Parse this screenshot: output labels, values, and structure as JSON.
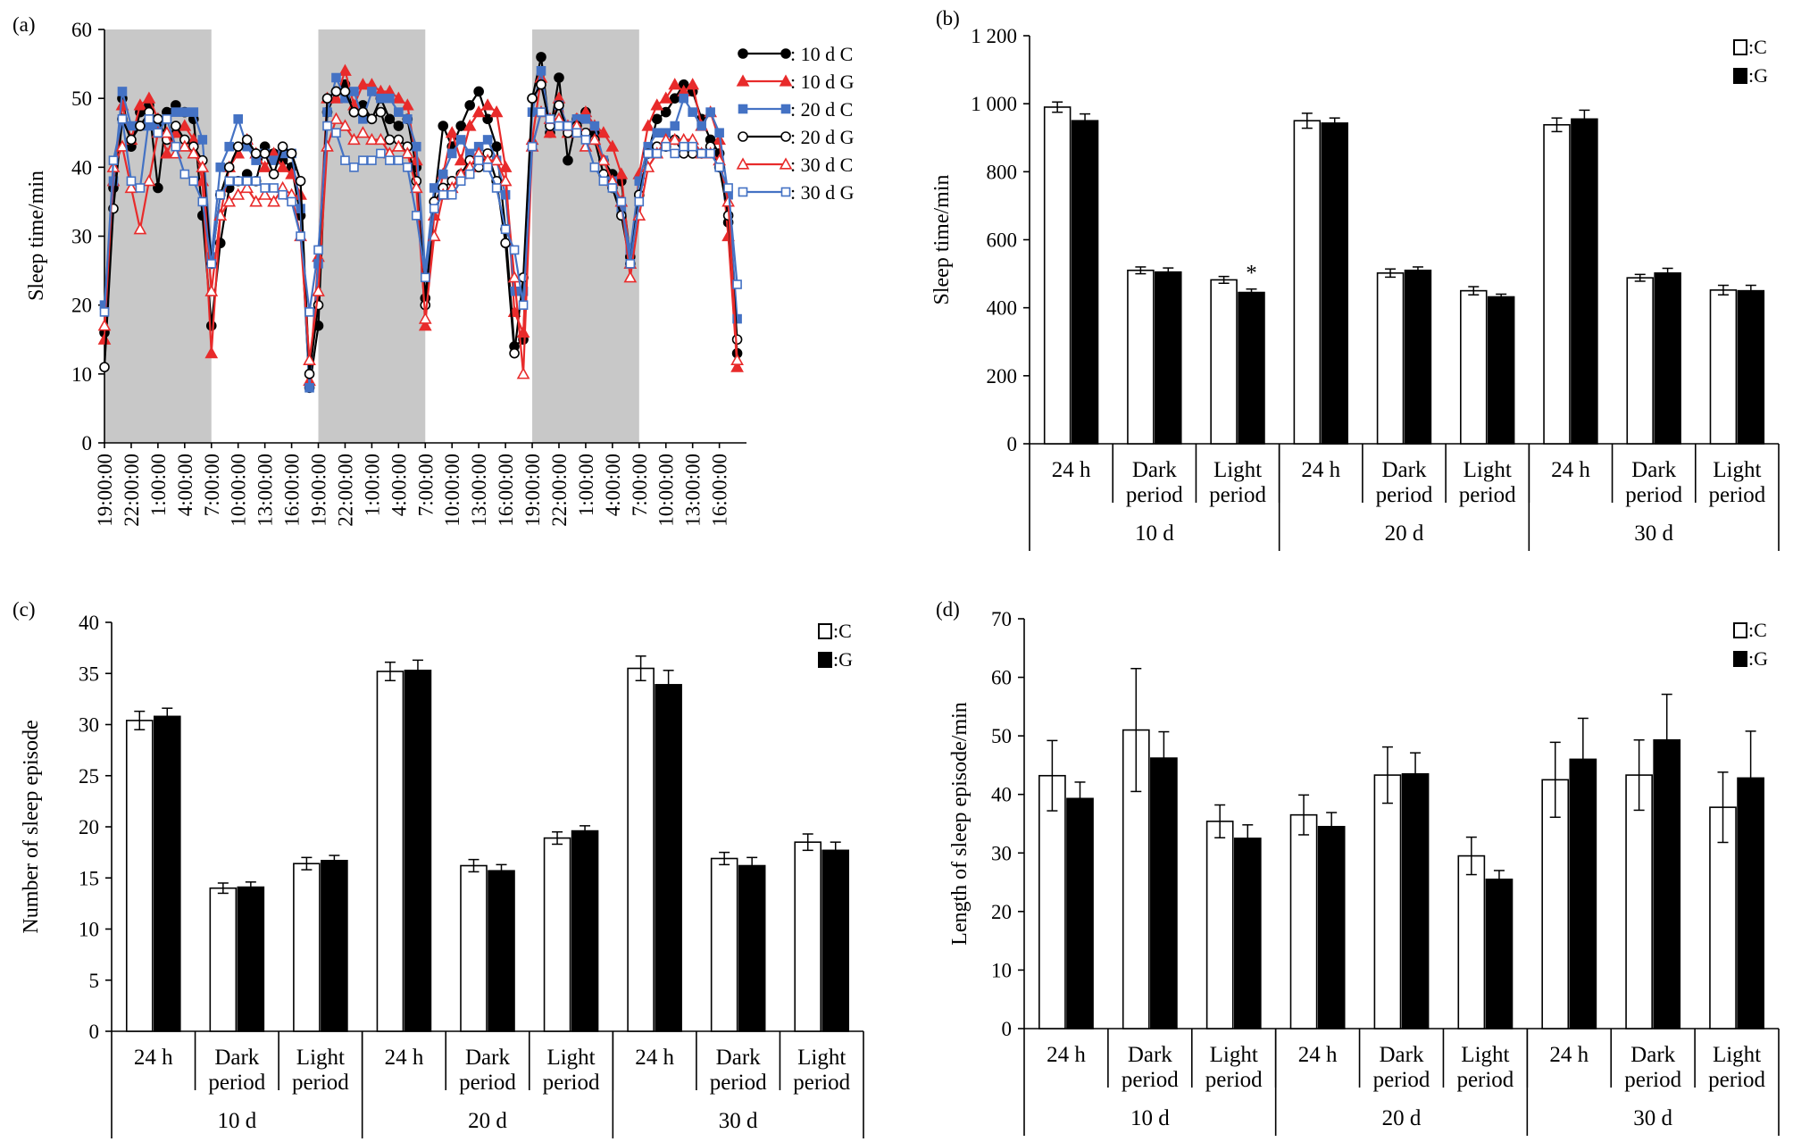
{
  "chart_data": [
    {
      "panel": "(a)",
      "type": "line",
      "ylabel": "Sleep time/min",
      "ylim": [
        0,
        60
      ],
      "yticks": [
        0,
        10,
        20,
        30,
        40,
        50,
        60
      ],
      "x_tick_labels": [
        "19:00:00",
        "22:00:00",
        "1:00:00",
        "4:00:00",
        "7:00:00",
        "10:00:00",
        "13:00:00",
        "16:00:00",
        "19:00:00",
        "22:00:00",
        "1:00:00",
        "4:00:00",
        "7:00:00",
        "10:00:00",
        "13:00:00",
        "16:00:00",
        "19:00:00",
        "22:00:00",
        "1:00:00",
        "4:00:00",
        "7:00:00",
        "10:00:00",
        "13:00:00",
        "16:00:00"
      ],
      "x_hours": [
        0,
        1,
        2,
        3,
        4,
        5,
        6,
        7,
        8,
        9,
        10,
        11,
        12,
        13,
        14,
        15,
        16,
        17,
        18,
        19,
        20,
        21,
        22,
        23,
        24,
        25,
        26,
        27,
        28,
        29,
        30,
        31,
        32,
        33,
        34,
        35,
        36,
        37,
        38,
        39,
        40,
        41,
        42,
        43,
        44,
        45,
        46,
        47,
        48,
        49,
        50,
        51,
        52,
        53,
        54,
        55,
        56,
        57,
        58,
        59,
        60,
        61,
        62,
        63,
        64,
        65,
        66,
        67,
        68,
        69,
        70,
        71
      ],
      "dark_periods": [
        [
          0,
          12
        ],
        [
          24,
          36
        ],
        [
          48,
          60
        ]
      ],
      "legend_position": "top-right",
      "series": [
        {
          "name": ": 10 d C",
          "color": "#000000",
          "marker": "circle",
          "filled": true,
          "values": [
            16,
            37,
            50,
            43,
            48,
            49,
            37,
            48,
            49,
            48,
            47,
            33,
            17,
            29,
            37,
            38,
            39,
            38,
            43,
            42,
            41,
            40,
            33,
            8,
            17,
            48,
            51,
            52,
            48,
            49,
            47,
            50,
            47,
            46,
            47,
            40,
            21,
            35,
            46,
            43,
            46,
            49,
            51,
            47,
            43,
            31,
            14,
            15,
            50,
            56,
            45,
            53,
            41,
            47,
            48,
            45,
            41,
            39,
            38,
            27,
            36,
            42,
            47,
            48,
            50,
            52,
            51,
            47,
            44,
            42,
            32,
            13
          ]
        },
        {
          "name": ": 10 d G",
          "color": "#e82b2b",
          "marker": "triangle",
          "filled": true,
          "values": [
            15,
            38,
            49,
            44,
            49,
            50,
            47,
            42,
            45,
            46,
            44,
            38,
            13,
            33,
            40,
            42,
            44,
            42,
            40,
            42,
            40,
            39,
            36,
            9,
            27,
            50,
            50,
            54,
            49,
            52,
            52,
            51,
            51,
            50,
            49,
            41,
            17,
            33,
            39,
            45,
            41,
            46,
            48,
            49,
            48,
            40,
            19,
            16,
            44,
            53,
            45,
            50,
            45,
            47,
            48,
            46,
            45,
            43,
            39,
            26,
            39,
            46,
            49,
            50,
            52,
            51,
            52,
            46,
            48,
            44,
            30,
            11
          ]
        },
        {
          "name": ": 20 d C",
          "color": "#4472c4",
          "marker": "square",
          "filled": true,
          "values": [
            20,
            38,
            51,
            46,
            46,
            46,
            46,
            47,
            48,
            48,
            48,
            44,
            27,
            40,
            43,
            47,
            43,
            41,
            42,
            41,
            42,
            42,
            34,
            8,
            26,
            48,
            53,
            50,
            51,
            47,
            51,
            50,
            50,
            48,
            47,
            43,
            25,
            37,
            39,
            42,
            44,
            42,
            43,
            44,
            41,
            36,
            22,
            22,
            48,
            54,
            46,
            49,
            46,
            47,
            47,
            46,
            41,
            38,
            34,
            28,
            38,
            43,
            45,
            45,
            46,
            50,
            48,
            46,
            48,
            45,
            36,
            18
          ]
        },
        {
          "name": ": 20 d G",
          "color": "#000000",
          "marker": "circle",
          "filled": false,
          "values": [
            11,
            34,
            47,
            44,
            46,
            48,
            47,
            44,
            46,
            44,
            43,
            41,
            26,
            36,
            40,
            43,
            44,
            42,
            42,
            39,
            43,
            42,
            38,
            10,
            20,
            50,
            51,
            51,
            48,
            48,
            47,
            48,
            44,
            44,
            43,
            38,
            20,
            35,
            37,
            38,
            39,
            41,
            40,
            42,
            38,
            29,
            13,
            24,
            50,
            52,
            46,
            49,
            45,
            46,
            45,
            44,
            39,
            37,
            33,
            26,
            36,
            42,
            43,
            43,
            44,
            42,
            42,
            42,
            43,
            40,
            33,
            15
          ]
        },
        {
          "name": ": 30 d C",
          "color": "#e82b2b",
          "marker": "triangle",
          "filled": false,
          "values": [
            17,
            40,
            43,
            37,
            31,
            38,
            45,
            45,
            42,
            43,
            42,
            40,
            22,
            33,
            35,
            36,
            37,
            35,
            36,
            35,
            37,
            36,
            30,
            12,
            22,
            43,
            47,
            46,
            44,
            45,
            44,
            44,
            42,
            43,
            42,
            37,
            18,
            30,
            36,
            37,
            39,
            40,
            42,
            41,
            41,
            38,
            24,
            10,
            43,
            48,
            47,
            47,
            46,
            46,
            43,
            44,
            41,
            38,
            35,
            24,
            33,
            40,
            42,
            44,
            44,
            44,
            44,
            42,
            42,
            41,
            35,
            12
          ]
        },
        {
          "name": ": 30 d G",
          "color": "#4472c4",
          "marker": "square",
          "filled": false,
          "values": [
            19,
            41,
            47,
            38,
            37,
            47,
            45,
            47,
            43,
            39,
            38,
            35,
            26,
            36,
            38,
            38,
            38,
            38,
            37,
            37,
            36,
            35,
            30,
            19,
            28,
            46,
            45,
            41,
            40,
            41,
            41,
            42,
            41,
            41,
            40,
            33,
            24,
            34,
            36,
            36,
            38,
            39,
            41,
            40,
            37,
            31,
            28,
            20,
            43,
            48,
            47,
            46,
            46,
            45,
            44,
            40,
            38,
            37,
            35,
            26,
            35,
            42,
            42,
            43,
            42,
            43,
            43,
            42,
            42,
            40,
            37,
            23
          ]
        }
      ]
    },
    {
      "panel": "(b)",
      "type": "bar",
      "ylabel": "Sleep time/min",
      "ylim": [
        0,
        1200
      ],
      "yticks": [
        0,
        200,
        400,
        600,
        800,
        1000,
        1200
      ],
      "ytick_labels": [
        "0",
        "200",
        "400",
        "600",
        "800",
        "1 000",
        "1 200"
      ],
      "categories": [
        "24 h",
        "Dark period",
        "Light period",
        "24 h",
        "Dark period",
        "Light period",
        "24 h",
        "Dark period",
        "Light period"
      ],
      "groups": [
        "10 d",
        "20 d",
        "30 d"
      ],
      "legend": [
        ":C",
        ":G"
      ],
      "legend_position": "top-right",
      "series": [
        {
          "name": ":C",
          "values": [
            990,
            510,
            482,
            950,
            502,
            450,
            938,
            488,
            452
          ],
          "errors": [
            15,
            10,
            10,
            22,
            12,
            12,
            20,
            10,
            14
          ]
        },
        {
          "name": ":G",
          "values": [
            950,
            505,
            445,
            943,
            510,
            432,
            955,
            502,
            450
          ],
          "errors": [
            20,
            12,
            10,
            15,
            10,
            8,
            26,
            14,
            16
          ]
        }
      ],
      "annotations": [
        {
          "text": "*",
          "category": 2,
          "series": ":G"
        }
      ]
    },
    {
      "panel": "(c)",
      "type": "bar",
      "ylabel": "Number of sleep episode",
      "ylim": [
        0,
        40
      ],
      "yticks": [
        0,
        5,
        10,
        15,
        20,
        25,
        30,
        35,
        40
      ],
      "ytick_labels": [
        "0",
        "5",
        "10",
        "15",
        "20",
        "25",
        "30",
        "35",
        "40"
      ],
      "categories": [
        "24 h",
        "Dark period",
        "Light period",
        "24 h",
        "Dark period",
        "Light period",
        "24 h",
        "Dark period",
        "Light period"
      ],
      "groups": [
        "10 d",
        "20 d",
        "30 d"
      ],
      "legend": [
        ":C",
        ":G"
      ],
      "legend_position": "top-right",
      "series": [
        {
          "name": ":C",
          "values": [
            30.4,
            14.0,
            16.4,
            35.2,
            16.2,
            18.9,
            35.5,
            16.9,
            18.5
          ],
          "errors": [
            0.9,
            0.5,
            0.6,
            0.9,
            0.6,
            0.6,
            1.2,
            0.6,
            0.8
          ]
        },
        {
          "name": ":G",
          "values": [
            30.8,
            14.1,
            16.7,
            35.3,
            15.7,
            19.6,
            33.9,
            16.2,
            17.7
          ],
          "errors": [
            0.8,
            0.5,
            0.5,
            1.0,
            0.6,
            0.5,
            1.4,
            0.8,
            0.8
          ]
        }
      ]
    },
    {
      "panel": "(d)",
      "type": "bar",
      "ylabel": "Length of sleep episode/min",
      "ylim": [
        0,
        70
      ],
      "yticks": [
        0,
        10,
        20,
        30,
        40,
        50,
        60,
        70
      ],
      "ytick_labels": [
        "0",
        "10",
        "20",
        "30",
        "40",
        "50",
        "60",
        "70"
      ],
      "categories": [
        "24 h",
        "Dark period",
        "Light period",
        "24 h",
        "Dark period",
        "Light period",
        "24 h",
        "Dark period",
        "Light period"
      ],
      "groups": [
        "10 d",
        "20 d",
        "30 d"
      ],
      "legend": [
        ":C",
        ":G"
      ],
      "legend_position": "top-right",
      "series": [
        {
          "name": ":C",
          "values": [
            43.2,
            51.0,
            35.4,
            36.5,
            43.3,
            29.5,
            42.5,
            43.3,
            37.8
          ],
          "errors": [
            6.0,
            10.5,
            2.8,
            3.4,
            4.8,
            3.2,
            6.4,
            6.0,
            6.0
          ]
        },
        {
          "name": ":G",
          "values": [
            39.3,
            46.2,
            32.5,
            34.5,
            43.5,
            25.5,
            46.0,
            49.3,
            42.8
          ],
          "errors": [
            2.8,
            4.5,
            2.3,
            2.4,
            3.6,
            1.5,
            7.0,
            7.8,
            8.0
          ]
        }
      ]
    }
  ]
}
